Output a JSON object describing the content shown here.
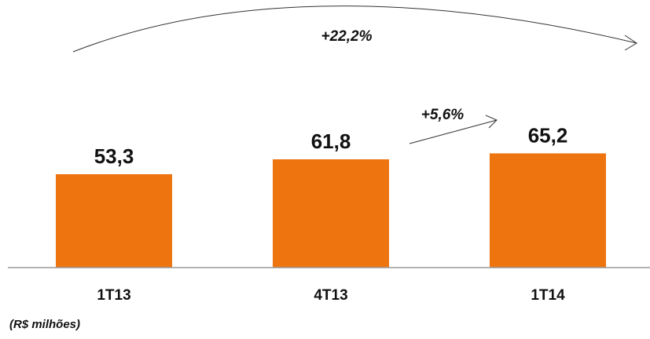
{
  "chart_data": {
    "type": "bar",
    "categories": [
      "1T13",
      "4T13",
      "1T14"
    ],
    "values": [
      53.3,
      61.8,
      65.2
    ],
    "value_labels": [
      "53,3",
      "61,8",
      "65,2"
    ],
    "unit_note": "(R$ milhões)",
    "annotations": [
      {
        "text": "+22,2%",
        "from": "1T13",
        "to": "1T14"
      },
      {
        "text": "+5,6%",
        "from": "4T13",
        "to": "1T14"
      }
    ],
    "bar_color": "#EE7410",
    "axis_color": "#999999",
    "grid": false,
    "legend": "none"
  }
}
